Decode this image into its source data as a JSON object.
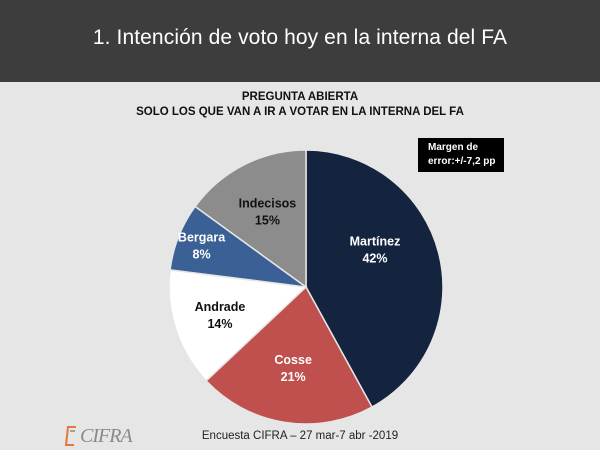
{
  "header": {
    "title": "1. Intención de voto hoy en la interna del FA"
  },
  "subtitle": {
    "line1": "PREGUNTA ABIERTA",
    "line2": "SOLO LOS QUE VAN A IR A VOTAR EN LA INTERNA DEL  FA"
  },
  "margin_box": {
    "line1": "Margen de",
    "line2": "error:+/-7,2 pp"
  },
  "footer": {
    "source": "Encuesta CIFRA – 27 mar-7 abr -2019"
  },
  "logo": {
    "text": "CIFRA"
  },
  "chart_data": {
    "type": "pie",
    "title": "1. Intención de voto hoy en la interna del FA",
    "slices": [
      {
        "label": "Martínez",
        "value": 42,
        "display": "42%",
        "color": "#14243f",
        "text_color": "#ffffff"
      },
      {
        "label": "Cosse",
        "value": 21,
        "display": "21%",
        "color": "#c0504d",
        "text_color": "#ffffff"
      },
      {
        "label": "Andrade",
        "value": 14,
        "display": "14%",
        "color": "#ffffff",
        "text_color": "#111111"
      },
      {
        "label": "Bergara",
        "value": 8,
        "display": "8%",
        "color": "#3a6095",
        "text_color": "#ffffff"
      },
      {
        "label": "Indecisos",
        "value": 15,
        "display": "15%",
        "color": "#8c8c8c",
        "text_color": "#111111"
      }
    ]
  }
}
